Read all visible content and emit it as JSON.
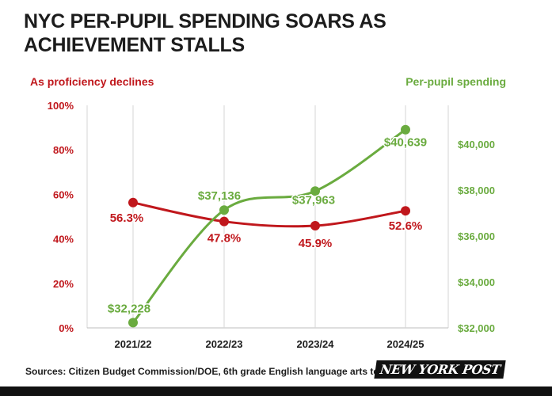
{
  "title": "NYC PER-PUPIL SPENDING SOARS AS ACHIEVEMENT STALLS",
  "source": "Sources: Citizen Budget Commission/DOE, 6th grade English language arts testing",
  "logo_text": "NEW YORK POST",
  "colors": {
    "red": "#c0171c",
    "green": "#6aab3f",
    "text": "#1c1c1c",
    "grid": "#d5d5d5"
  },
  "chart_data": {
    "type": "line",
    "title": "NYC PER-PUPIL SPENDING SOARS AS ACHIEVEMENT STALLS",
    "categories": [
      "2021/22",
      "2022/23",
      "2023/24",
      "2024/25"
    ],
    "left_axis": {
      "label": "As proficiency declines",
      "range": [
        0,
        100
      ],
      "ticks": [
        0,
        20,
        40,
        60,
        80,
        100
      ],
      "tick_labels": [
        "0%",
        "20%",
        "40%",
        "60%",
        "80%",
        "100%"
      ]
    },
    "right_axis": {
      "label": "Per-pupil spending",
      "range": [
        32000,
        41700
      ],
      "ticks": [
        32000,
        34000,
        36000,
        38000,
        40000
      ],
      "tick_labels": [
        "$32,000",
        "$34,000",
        "$36,000",
        "$38,000",
        "$40,000"
      ]
    },
    "series": [
      {
        "name": "As proficiency declines",
        "axis": "left",
        "color": "#c0171c",
        "values": [
          56.3,
          47.8,
          45.9,
          52.6
        ],
        "labels": [
          "56.3%",
          "47.8%",
          "45.9%",
          "52.6%"
        ]
      },
      {
        "name": "Per-pupil spending",
        "axis": "right",
        "color": "#6aab3f",
        "values": [
          32228,
          37136,
          37963,
          40639
        ],
        "labels": [
          "$32,228",
          "$37,136",
          "$37,963",
          "$40,639"
        ]
      }
    ]
  }
}
